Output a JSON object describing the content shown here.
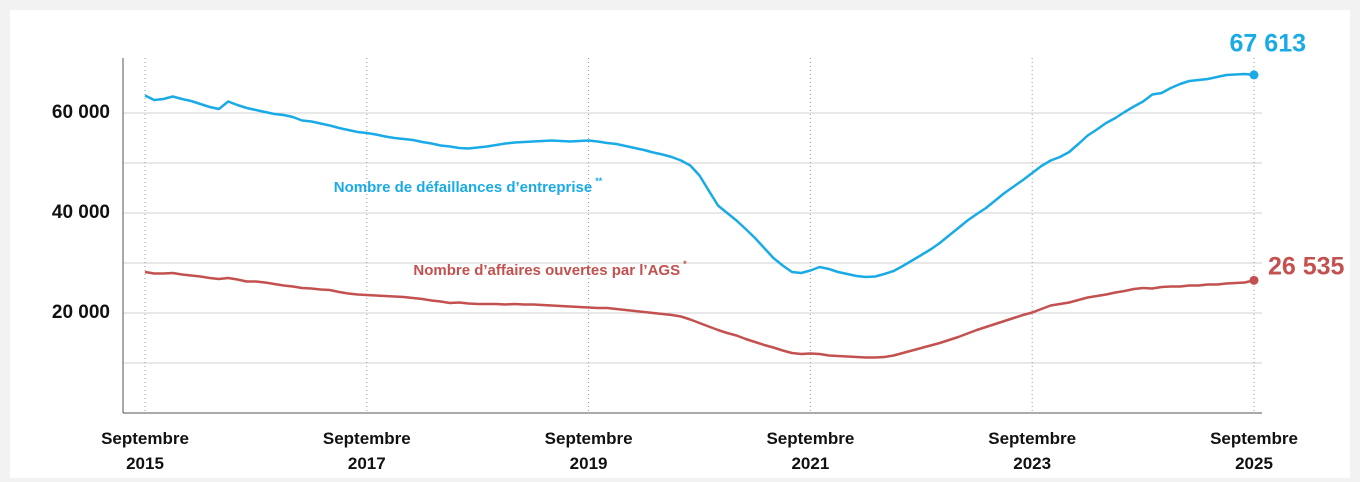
{
  "chart_data": {
    "type": "line",
    "x": [
      "2015-09",
      "2015-10",
      "2015-11",
      "2015-12",
      "2016-01",
      "2016-02",
      "2016-03",
      "2016-04",
      "2016-05",
      "2016-06",
      "2016-07",
      "2016-08",
      "2016-09",
      "2016-10",
      "2016-11",
      "2016-12",
      "2017-01",
      "2017-02",
      "2017-03",
      "2017-04",
      "2017-05",
      "2017-06",
      "2017-07",
      "2017-08",
      "2017-09",
      "2017-10",
      "2017-11",
      "2017-12",
      "2018-01",
      "2018-02",
      "2018-03",
      "2018-04",
      "2018-05",
      "2018-06",
      "2018-07",
      "2018-08",
      "2018-09",
      "2018-10",
      "2018-11",
      "2018-12",
      "2019-01",
      "2019-02",
      "2019-03",
      "2019-04",
      "2019-05",
      "2019-06",
      "2019-07",
      "2019-08",
      "2019-09",
      "2019-10",
      "2019-11",
      "2019-12",
      "2020-01",
      "2020-02",
      "2020-03",
      "2020-04",
      "2020-05",
      "2020-06",
      "2020-07",
      "2020-08",
      "2020-09",
      "2020-10",
      "2020-11",
      "2020-12",
      "2021-01",
      "2021-02",
      "2021-03",
      "2021-04",
      "2021-05",
      "2021-06",
      "2021-07",
      "2021-08",
      "2021-09",
      "2021-10",
      "2021-11",
      "2021-12",
      "2022-01",
      "2022-02",
      "2022-03",
      "2022-04",
      "2022-05",
      "2022-06",
      "2022-07",
      "2022-08",
      "2022-09",
      "2022-10",
      "2022-11",
      "2022-12",
      "2023-01",
      "2023-02",
      "2023-03",
      "2023-04",
      "2023-05",
      "2023-06",
      "2023-07",
      "2023-08",
      "2023-09",
      "2023-10",
      "2023-11",
      "2023-12",
      "2024-01",
      "2024-02",
      "2024-03",
      "2024-04",
      "2024-05",
      "2024-06",
      "2024-07",
      "2024-08",
      "2024-09",
      "2024-10",
      "2024-11",
      "2024-12",
      "2025-01",
      "2025-02",
      "2025-03",
      "2025-04",
      "2025-05",
      "2025-06",
      "2025-07",
      "2025-08",
      "2025-09"
    ],
    "series": [
      {
        "name": "Nombre de défaillances d’entreprise",
        "name_note": "**",
        "color": "#1aabe6",
        "value_labels_last": "67 613",
        "values": [
          63500,
          62600,
          62800,
          63300,
          62800,
          62400,
          61800,
          61200,
          60800,
          62300,
          61600,
          61000,
          60600,
          60200,
          59800,
          59600,
          59200,
          58500,
          58300,
          57900,
          57500,
          57000,
          56600,
          56200,
          56000,
          55700,
          55300,
          55000,
          54800,
          54600,
          54200,
          53900,
          53500,
          53300,
          53000,
          52900,
          53100,
          53300,
          53600,
          53900,
          54100,
          54200,
          54300,
          54400,
          54500,
          54400,
          54300,
          54400,
          54500,
          54300,
          54000,
          53800,
          53400,
          53000,
          52600,
          52100,
          51700,
          51200,
          50500,
          49500,
          47500,
          44500,
          41500,
          40000,
          38500,
          36800,
          35000,
          33000,
          31000,
          29500,
          28200,
          28000,
          28500,
          29200,
          28800,
          28200,
          27800,
          27400,
          27200,
          27300,
          27800,
          28400,
          29400,
          30500,
          31600,
          32700,
          34000,
          35500,
          37000,
          38500,
          39800,
          41000,
          42500,
          44000,
          45300,
          46600,
          48000,
          49400,
          50500,
          51200,
          52200,
          53800,
          55500,
          56700,
          58000,
          59000,
          60200,
          61300,
          62300,
          63700,
          64000,
          65000,
          65800,
          66400,
          66600,
          66800,
          67200,
          67600,
          67700,
          67800,
          67613
        ]
      },
      {
        "name": "Nombre d’affaires ouvertes par l’AGS",
        "name_note": "*",
        "color": "#c2514f",
        "value_labels_last": "26 535",
        "values": [
          28200,
          27900,
          27900,
          28000,
          27700,
          27500,
          27300,
          27000,
          26800,
          27000,
          26700,
          26300,
          26300,
          26100,
          25800,
          25500,
          25300,
          25000,
          24900,
          24700,
          24600,
          24200,
          23900,
          23700,
          23600,
          23500,
          23400,
          23300,
          23200,
          23000,
          22800,
          22500,
          22300,
          22000,
          22100,
          21900,
          21800,
          21800,
          21800,
          21700,
          21800,
          21700,
          21700,
          21600,
          21500,
          21400,
          21300,
          21200,
          21100,
          21000,
          21000,
          20800,
          20600,
          20400,
          20200,
          20000,
          19800,
          19600,
          19300,
          18700,
          18000,
          17300,
          16600,
          16000,
          15500,
          14800,
          14200,
          13600,
          13100,
          12500,
          12000,
          11800,
          11900,
          11800,
          11500,
          11400,
          11300,
          11200,
          11100,
          11100,
          11200,
          11500,
          12000,
          12500,
          13000,
          13500,
          14000,
          14600,
          15200,
          15900,
          16600,
          17200,
          17800,
          18400,
          19000,
          19600,
          20100,
          20800,
          21500,
          21800,
          22100,
          22600,
          23100,
          23400,
          23700,
          24100,
          24400,
          24800,
          25000,
          24900,
          25200,
          25300,
          25300,
          25500,
          25500,
          25700,
          25700,
          25900,
          26000,
          26100,
          26535
        ]
      }
    ],
    "xlim": [
      "2015-09",
      "2025-09"
    ],
    "xticks": [
      {
        "value": "2015-09",
        "label": "Septembre 2015"
      },
      {
        "value": "2017-09",
        "label": "Septembre 2017"
      },
      {
        "value": "2019-09",
        "label": "Septembre 2019"
      },
      {
        "value": "2021-09",
        "label": "Septembre 2021"
      },
      {
        "value": "2023-09",
        "label": "Septembre 2023"
      },
      {
        "value": "2025-09",
        "label": "Septembre 2025"
      }
    ],
    "ylim": [
      0,
      71000
    ],
    "yticks": [
      {
        "value": 20000,
        "label": "20 000"
      },
      {
        "value": 40000,
        "label": "40 000"
      },
      {
        "value": 60000,
        "label": "60 000"
      }
    ],
    "ygrid_minor": [
      10000,
      30000,
      50000
    ],
    "grid": true
  }
}
